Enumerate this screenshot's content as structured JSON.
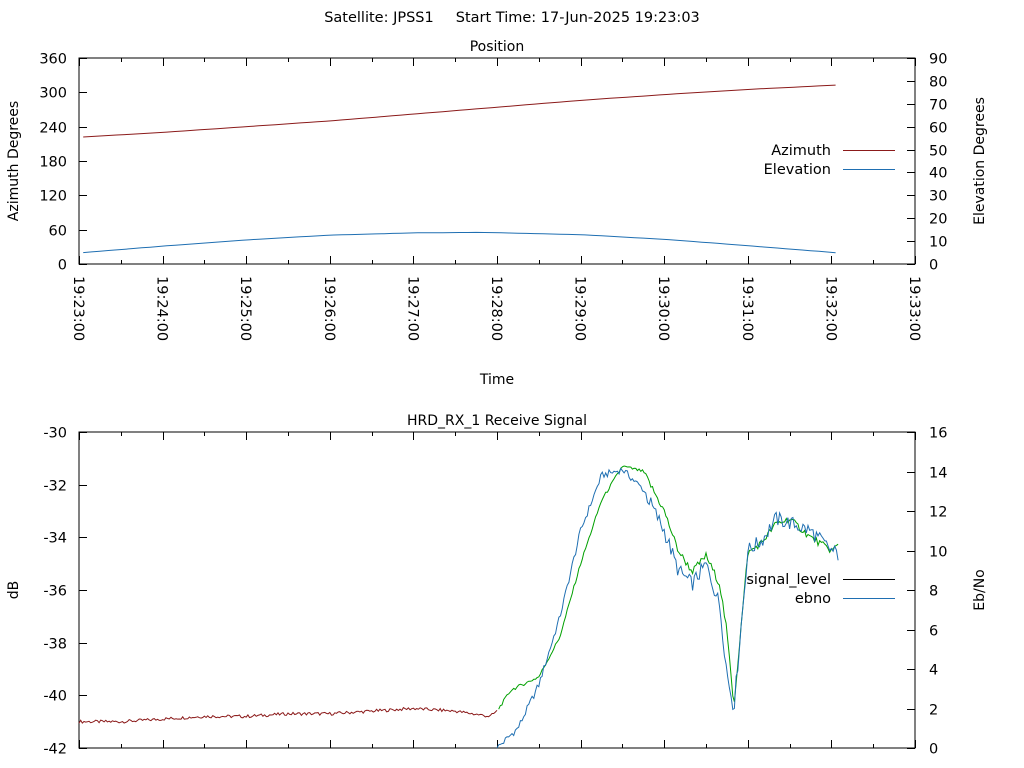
{
  "header": {
    "satellite_label": "Satellite: JPSS1",
    "start_time_label": "Start Time: 17-Jun-2025 19:23:03"
  },
  "colors": {
    "azimuth": "#8b1a1a",
    "elevation": "#1f6fb2",
    "signal_level": "#000000",
    "signal_level_red": "#8b1a1a",
    "signal_level_green": "#00a000",
    "ebno": "#1f6fb2",
    "axis": "#000000"
  },
  "chart_data": [
    {
      "type": "line",
      "title": "Position",
      "xlabel": "Time",
      "ylabel": "Azimuth Degrees",
      "y2label": "Elevation Degrees",
      "xlim": [
        "19:23:00",
        "19:33:00"
      ],
      "ylim": [
        0,
        360
      ],
      "y2lim": [
        0,
        90
      ],
      "xticks": [
        "19:23:00",
        "19:24:00",
        "19:25:00",
        "19:26:00",
        "19:27:00",
        "19:28:00",
        "19:29:00",
        "19:30:00",
        "19:31:00",
        "19:32:00",
        "19:33:00"
      ],
      "yticks": [
        0,
        60,
        120,
        180,
        240,
        300,
        360
      ],
      "y2ticks": [
        0,
        10,
        20,
        30,
        40,
        50,
        60,
        70,
        80,
        90
      ],
      "legend_position": "right",
      "series": [
        {
          "name": "Azimuth",
          "axis": "y",
          "x": [
            "19:23:03",
            "19:24:00",
            "19:25:00",
            "19:26:00",
            "19:27:00",
            "19:28:00",
            "19:29:00",
            "19:30:00",
            "19:31:00",
            "19:32:06"
          ],
          "values": [
            222,
            230,
            240,
            250,
            262,
            274,
            286,
            296,
            305,
            313
          ]
        },
        {
          "name": "Elevation",
          "axis": "y2",
          "x": [
            "19:23:03",
            "19:24:00",
            "19:25:00",
            "19:26:00",
            "19:27:00",
            "19:27:45",
            "19:28:00",
            "19:29:00",
            "19:30:00",
            "19:31:00",
            "19:32:06"
          ],
          "values": [
            5.0,
            7.8,
            10.5,
            12.6,
            13.6,
            13.8,
            13.7,
            12.8,
            10.8,
            8.0,
            4.8
          ]
        }
      ]
    },
    {
      "type": "line",
      "title": "HRD_RX_1 Receive Signal",
      "xlabel": "",
      "ylabel": "dB",
      "y2label": "Eb/No",
      "xlim": [
        "19:23:00",
        "19:33:00"
      ],
      "ylim": [
        -42,
        -30
      ],
      "y2lim": [
        0,
        16
      ],
      "yticks": [
        -42,
        -40,
        -38,
        -36,
        -34,
        -32,
        -30
      ],
      "y2ticks": [
        0,
        2,
        4,
        6,
        8,
        10,
        12,
        14,
        16
      ],
      "legend_position": "right",
      "series": [
        {
          "name": "signal_level",
          "axis": "y",
          "x": [
            "19:23:00",
            "19:23:30",
            "19:24:00",
            "19:24:30",
            "19:25:00",
            "19:25:30",
            "19:26:00",
            "19:26:30",
            "19:27:00",
            "19:27:30",
            "19:27:55",
            "19:28:00",
            "19:28:10",
            "19:28:30",
            "19:28:45",
            "19:29:00",
            "19:29:15",
            "19:29:30",
            "19:29:45",
            "19:30:00",
            "19:30:10",
            "19:30:20",
            "19:30:30",
            "19:30:40",
            "19:30:45",
            "19:30:50",
            "19:31:00",
            "19:31:10",
            "19:31:20",
            "19:31:30",
            "19:31:45",
            "19:32:00",
            "19:32:05"
          ],
          "values": [
            -41.0,
            -41.0,
            -40.9,
            -40.8,
            -40.8,
            -40.7,
            -40.7,
            -40.6,
            -40.5,
            -40.6,
            -40.8,
            -40.6,
            -39.8,
            -39.3,
            -37.8,
            -35.0,
            -32.6,
            -31.3,
            -31.5,
            -33.0,
            -34.5,
            -35.3,
            -34.7,
            -35.8,
            -37.6,
            -40.4,
            -34.6,
            -34.2,
            -33.5,
            -33.3,
            -34.0,
            -34.5,
            -34.3
          ]
        },
        {
          "name": "ebno",
          "axis": "y2",
          "x": [
            "19:28:00",
            "19:28:15",
            "19:28:30",
            "19:28:45",
            "19:29:00",
            "19:29:15",
            "19:29:30",
            "19:29:45",
            "19:30:00",
            "19:30:10",
            "19:30:20",
            "19:30:30",
            "19:30:40",
            "19:30:45",
            "19:30:50",
            "19:31:00",
            "19:31:10",
            "19:31:20",
            "19:31:30",
            "19:31:45",
            "19:32:00",
            "19:32:05"
          ],
          "values": [
            0.0,
            1.0,
            3.2,
            6.6,
            11.0,
            13.8,
            14.1,
            13.1,
            11.0,
            9.0,
            8.3,
            9.3,
            7.2,
            3.8,
            2.0,
            10.0,
            10.5,
            11.6,
            11.4,
            11.0,
            10.0,
            9.8
          ]
        }
      ]
    }
  ]
}
